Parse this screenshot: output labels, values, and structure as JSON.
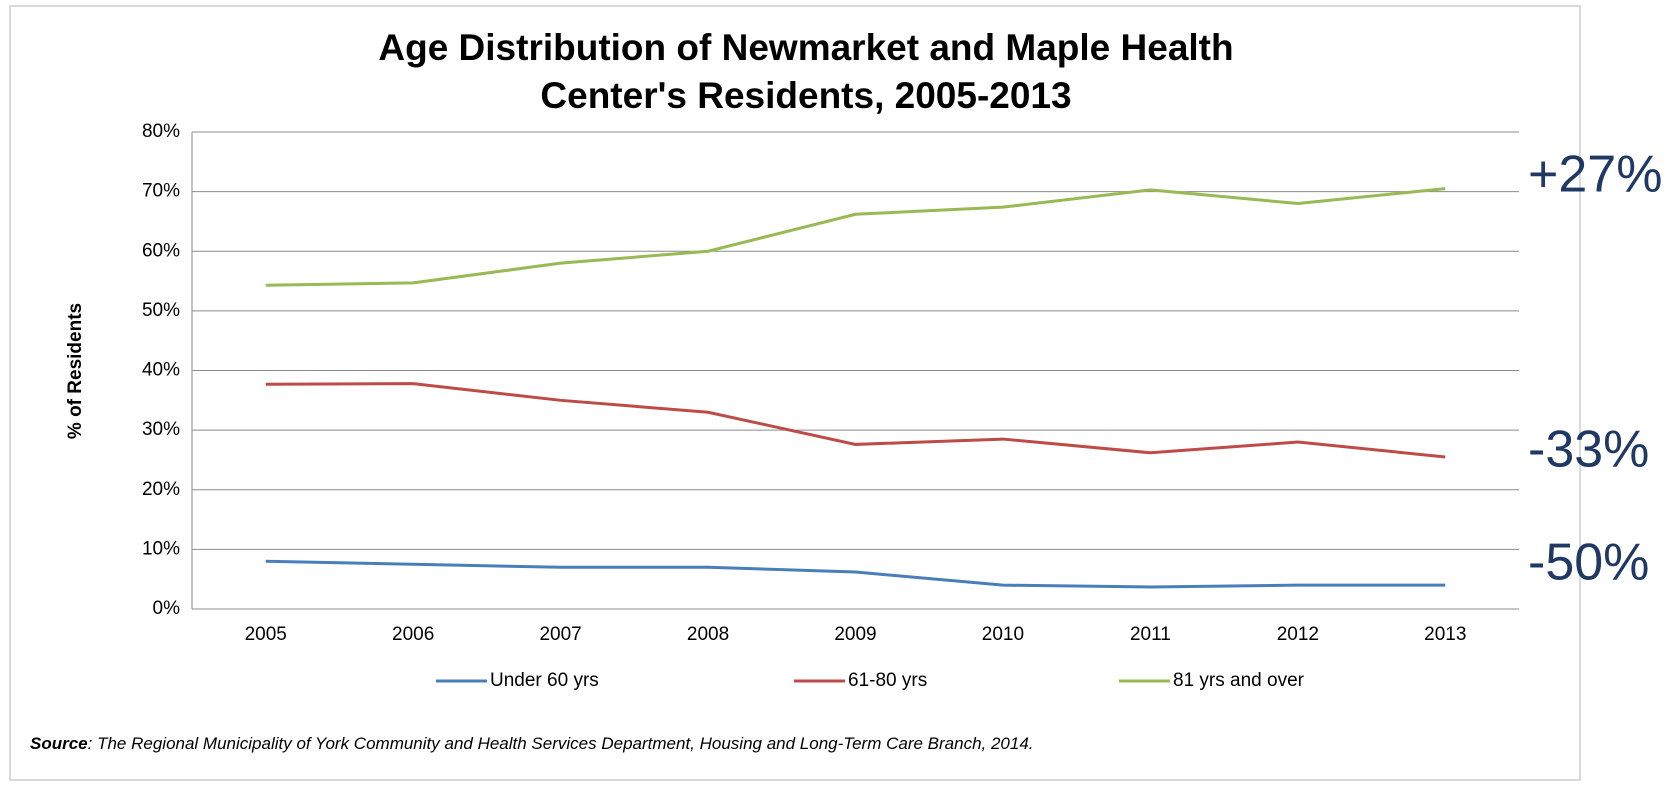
{
  "chart_data": {
    "type": "line",
    "title": [
      "Age Distribution of Newmarket and Maple Health",
      "Center's Residents, 2005-2013"
    ],
    "y_label": "% of Residents",
    "categories": [
      "2005",
      "2006",
      "2007",
      "2008",
      "2009",
      "2010",
      "2011",
      "2012",
      "2013"
    ],
    "series": [
      {
        "name": "Under 60 yrs",
        "color": "#4a7ebb",
        "values": [
          8,
          7.5,
          7,
          7,
          6.2,
          4,
          3.7,
          4,
          4
        ]
      },
      {
        "name": "61-80 yrs",
        "color": "#be4b48",
        "values": [
          37.7,
          37.8,
          35,
          33,
          27.6,
          28.5,
          26.2,
          28,
          25.5
        ]
      },
      {
        "name": "81 yrs and over",
        "color": "#98b954",
        "values": [
          54.3,
          54.7,
          58,
          60,
          66.2,
          67.4,
          70.3,
          68,
          70.5
        ]
      }
    ],
    "ylim": [
      0,
      80
    ],
    "yticks": [
      {
        "value": 0,
        "label": "0%"
      },
      {
        "value": 10,
        "label": "10%"
      },
      {
        "value": 20,
        "label": "20%"
      },
      {
        "value": 30,
        "label": "30%"
      },
      {
        "value": 40,
        "label": "40%"
      },
      {
        "value": 50,
        "label": "50%"
      },
      {
        "value": 60,
        "label": "60%"
      },
      {
        "value": 70,
        "label": "70%"
      },
      {
        "value": 80,
        "label": "80%"
      }
    ],
    "grid": true,
    "legend": "bottom",
    "annotations": [
      "+27%",
      "-33%",
      "-50%"
    ],
    "source_label": "Source",
    "source_text": ": The Regional Municipality of York Community and Health Services Department, Housing and Long-Term Care Branch, 2014."
  }
}
